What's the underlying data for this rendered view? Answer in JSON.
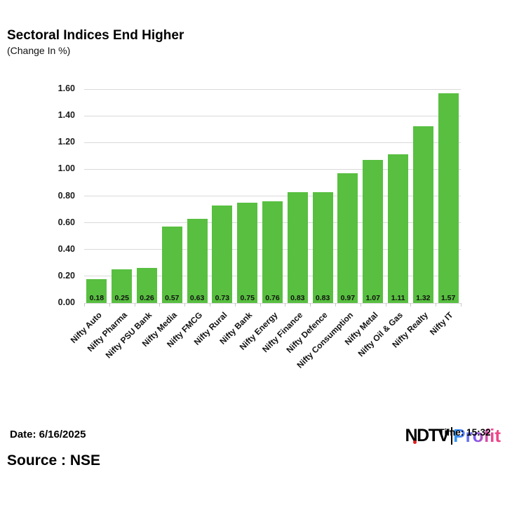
{
  "header": {
    "title": "Sectoral Indices End Higher",
    "subtitle": "(Change In %)"
  },
  "chart_data": {
    "type": "bar",
    "title": "Sectoral Indices End Higher",
    "subtitle": "(Change In %)",
    "categories": [
      "Nifty Auto",
      "Nifty Pharma",
      "Nifty PSU Bank",
      "Nifty Media",
      "Nifty FMCG",
      "Nifty Rural",
      "Nifty Bank",
      "Nifty Energy",
      "Nifty Finance",
      "Nifty Defence",
      "Nifty Consumption",
      "Nifty Metal",
      "Nifty Oil & Gas",
      "Nifty Realty",
      "Nifty IT"
    ],
    "values": [
      0.18,
      0.25,
      0.26,
      0.57,
      0.63,
      0.73,
      0.75,
      0.76,
      0.83,
      0.83,
      0.97,
      1.07,
      1.11,
      1.32,
      1.57
    ],
    "value_labels": [
      "0.18",
      "0.25",
      "0.26",
      "0.57",
      "0.63",
      "0.73",
      "0.75",
      "0.76",
      "0.83",
      "0.83",
      "0.97",
      "1.07",
      "1.11",
      "1.32",
      "1.57"
    ],
    "xlabel": "",
    "ylabel": "",
    "ylim": [
      0,
      1.6
    ],
    "yticks": [
      "0.00",
      "0.20",
      "0.40",
      "0.60",
      "0.80",
      "1.00",
      "1.20",
      "1.40",
      "1.60"
    ],
    "grid": true,
    "legend": false,
    "bar_color": "#58BF40",
    "gridline_color": "#d9d9d9"
  },
  "footer": {
    "date_label": "Date: 6/16/2025",
    "source_label": "Source : NSE",
    "logo": {
      "ndtv": "NDTV",
      "profit": "Profit",
      "overlay_time": "Time: 15:32",
      "gradient_start": "#2D9CF4",
      "gradient_end": "#F0437E"
    }
  }
}
